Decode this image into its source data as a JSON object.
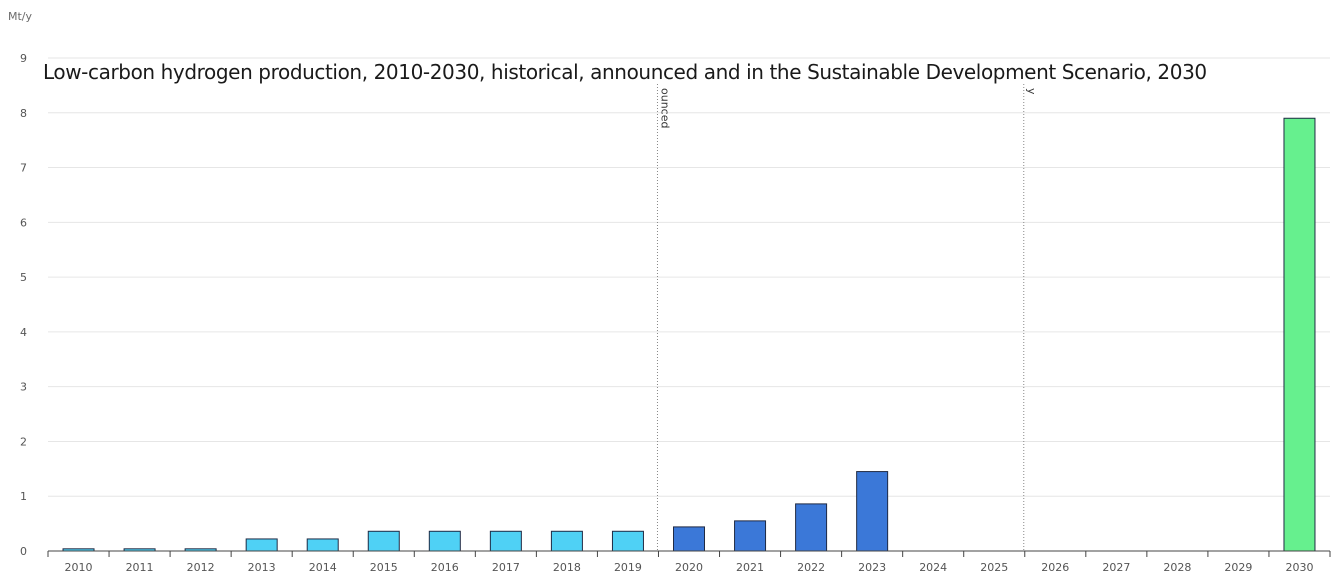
{
  "chart_data": {
    "type": "bar",
    "title": "Low-carbon hydrogen production, 2010-2030, historical, announced and in the Sustainable Development Scenario, 2030",
    "ylabel": "Mt/y",
    "xlabel": "",
    "ylim": [
      0,
      9
    ],
    "yticks": [
      "0",
      "1",
      "2",
      "3",
      "4",
      "5",
      "6",
      "7",
      "8",
      "9"
    ],
    "grid": true,
    "categories": [
      "2010",
      "2011",
      "2012",
      "2013",
      "2014",
      "2015",
      "2016",
      "2017",
      "2018",
      "2019",
      "2020",
      "2021",
      "2022",
      "2023",
      "2024",
      "2025",
      "2026",
      "2027",
      "2028",
      "2029",
      "2030"
    ],
    "values": [
      0.04,
      0.04,
      0.04,
      0.22,
      0.22,
      0.36,
      0.36,
      0.36,
      0.36,
      0.36,
      0.44,
      0.55,
      0.86,
      1.45,
      0,
      0,
      0,
      0,
      0,
      0,
      7.9
    ],
    "bar_groups": [
      "historical",
      "historical",
      "historical",
      "historical",
      "historical",
      "historical",
      "historical",
      "historical",
      "historical",
      "historical",
      "announced",
      "announced",
      "announced",
      "announced",
      "announced",
      "announced",
      "announced",
      "announced",
      "announced",
      "announced",
      "sds"
    ],
    "group_colors": {
      "historical": "#4fd1f5",
      "announced": "#3b78d8",
      "sds": "#66f08e"
    },
    "markers": [
      {
        "x": "2019",
        "label": "ounced"
      },
      {
        "x": "2025",
        "label": "y"
      }
    ]
  }
}
